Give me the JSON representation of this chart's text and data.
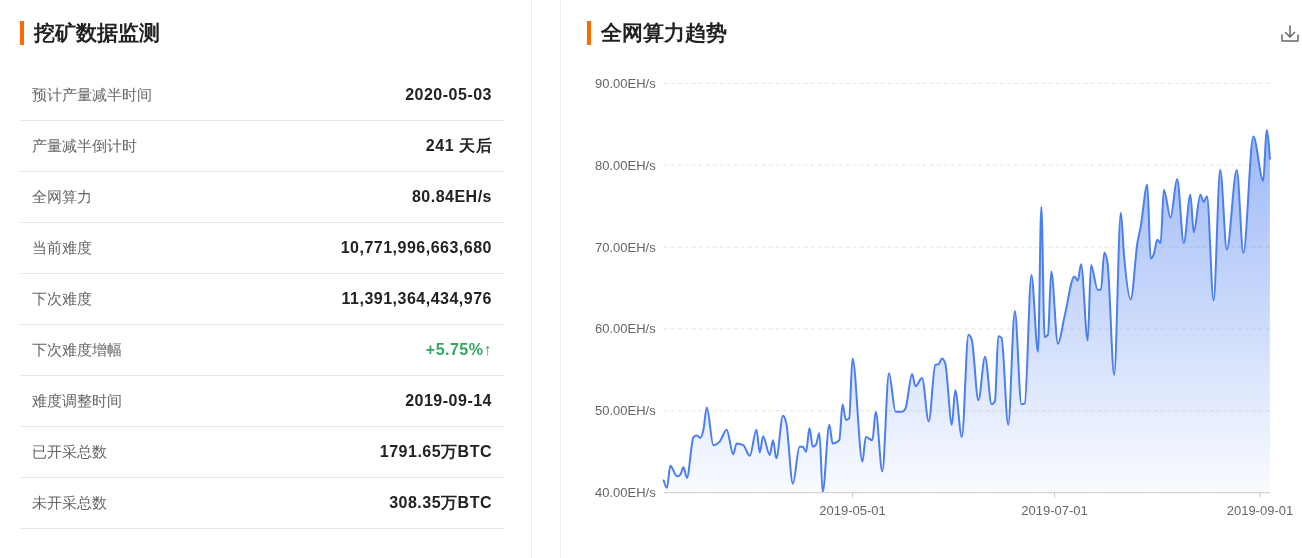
{
  "chart_data": [
    {
      "type": "other",
      "title": "挖矿数据监测",
      "annotations": [
        "预计产量减半时间",
        "2020-05-03",
        "产量减半倒计时",
        "241 天后",
        "全网算力",
        "80.84EH/s",
        "当前难度",
        "10,771,996,663,680",
        "下次难度",
        "11,391,364,434,976",
        "下次难度增幅",
        "+5.75%↑",
        "难度调整时间",
        "2019-09-14",
        "已开采总数",
        "1791.65万BTC",
        "未开采总数",
        "308.35万BTC"
      ],
      "colors": [
        "#666666",
        "#222222",
        "#666666",
        "#222222",
        "#666666",
        "#222222",
        "#666666",
        "#222222",
        "#666666",
        "#222222",
        "#666666",
        "#33a660",
        "#666666",
        "#222222",
        "#666666",
        "#222222",
        "#666666",
        "#222222"
      ]
    },
    {
      "type": "area",
      "title": "全网算力趋势",
      "x": [
        "2019-03-05",
        "2019-03-06",
        "2019-03-07",
        "2019-03-09",
        "2019-03-10",
        "2019-03-11",
        "2019-03-12",
        "2019-03-14",
        "2019-03-15",
        "2019-03-16",
        "2019-03-17",
        "2019-03-18",
        "2019-03-20",
        "2019-03-22",
        "2019-03-24",
        "2019-03-26",
        "2019-03-27",
        "2019-03-29",
        "2019-03-31",
        "2019-04-02",
        "2019-04-03",
        "2019-04-04",
        "2019-04-06",
        "2019-04-07",
        "2019-04-08",
        "2019-04-10",
        "2019-04-11",
        "2019-04-13",
        "2019-04-15",
        "2019-04-16",
        "2019-04-17",
        "2019-04-18",
        "2019-04-19",
        "2019-04-20",
        "2019-04-21",
        "2019-04-22",
        "2019-04-24",
        "2019-04-25",
        "2019-04-27",
        "2019-04-28",
        "2019-04-29",
        "2019-04-30",
        "2019-05-01",
        "2019-05-04",
        "2019-05-05",
        "2019-05-07",
        "2019-05-08",
        "2019-05-10",
        "2019-05-12",
        "2019-05-14",
        "2019-05-16",
        "2019-05-17",
        "2019-05-19",
        "2019-05-20",
        "2019-05-22",
        "2019-05-24",
        "2019-05-26",
        "2019-05-27",
        "2019-05-28",
        "2019-05-29",
        "2019-05-31",
        "2019-06-01",
        "2019-06-03",
        "2019-06-05",
        "2019-06-06",
        "2019-06-08",
        "2019-06-10",
        "2019-06-12",
        "2019-06-13",
        "2019-06-14",
        "2019-06-15",
        "2019-06-17",
        "2019-06-19",
        "2019-06-21",
        "2019-06-22",
        "2019-06-24",
        "2019-06-26",
        "2019-06-27",
        "2019-06-28",
        "2019-06-29",
        "2019-06-30",
        "2019-07-02",
        "2019-07-04",
        "2019-07-07",
        "2019-07-08",
        "2019-07-09",
        "2019-07-11",
        "2019-07-12",
        "2019-07-14",
        "2019-07-15",
        "2019-07-16",
        "2019-07-17",
        "2019-07-19",
        "2019-07-21",
        "2019-07-22",
        "2019-07-24",
        "2019-07-26",
        "2019-07-27",
        "2019-07-29",
        "2019-07-30",
        "2019-07-31",
        "2019-08-01",
        "2019-08-02",
        "2019-08-03",
        "2019-08-05",
        "2019-08-07",
        "2019-08-09",
        "2019-08-11",
        "2019-08-12",
        "2019-08-14",
        "2019-08-15",
        "2019-08-16",
        "2019-08-18",
        "2019-08-20",
        "2019-08-22",
        "2019-08-25",
        "2019-08-27",
        "2019-08-30",
        "2019-09-02",
        "2019-09-03",
        "2019-09-04"
      ],
      "series": [
        {
          "color": "#4b7ef0",
          "values": [
            41.5,
            40.6,
            43.3,
            42.0,
            42.2,
            43.1,
            41.8,
            46.8,
            47.0,
            46.7,
            47.7,
            50.4,
            45.8,
            46.3,
            47.7,
            44.7,
            46.0,
            45.8,
            44.5,
            47.7,
            44.9,
            46.9,
            44.6,
            46.4,
            44.2,
            49.4,
            48.5,
            41.1,
            45.6,
            45.6,
            45.0,
            47.9,
            45.6,
            45.9,
            47.3,
            40.1,
            48.3,
            46.0,
            46.4,
            50.8,
            48.9,
            49.1,
            56.4,
            43.8,
            46.8,
            46.4,
            49.9,
            42.6,
            54.6,
            49.9,
            49.9,
            50.3,
            54.5,
            53.0,
            54.0,
            48.7,
            55.6,
            55.7,
            56.4,
            55.8,
            48.3,
            52.5,
            46.8,
            59.3,
            58.7,
            51.3,
            56.6,
            50.8,
            51.2,
            59.1,
            58.9,
            48.3,
            62.2,
            50.8,
            50.9,
            66.6,
            57.2,
            74.9,
            59.0,
            59.3,
            67.0,
            58.2,
            61.5,
            66.4,
            65.9,
            67.9,
            58.6,
            67.8,
            64.8,
            64.8,
            69.3,
            68.0,
            54.4,
            74.2,
            68.8,
            63.6,
            70.5,
            72.5,
            77.6,
            68.6,
            69.2,
            70.9,
            70.5,
            77.0,
            73.6,
            78.3,
            70.5,
            76.4,
            71.8,
            76.4,
            75.5,
            76.2,
            63.5,
            79.4,
            69.7,
            79.4,
            69.3,
            83.5,
            78.1,
            84.3,
            80.8
          ]
        }
      ],
      "xlim": [
        "2019-03-05",
        "2019-09-04"
      ],
      "xticks": [
        "2019-05-01",
        "2019-07-01",
        "2019-09-01"
      ],
      "ylim": [
        40,
        90
      ],
      "yticks": [
        {
          "value": 40,
          "label": "40.00EH/s"
        },
        {
          "value": 50,
          "label": "50.00EH/s"
        },
        {
          "value": 60,
          "label": "60.00EH/s"
        },
        {
          "value": 70,
          "label": "70.00EH/s"
        },
        {
          "value": 80,
          "label": "80.00EH/s"
        },
        {
          "value": 90,
          "label": "90.00EH/s"
        }
      ],
      "grid": "y"
    }
  ]
}
